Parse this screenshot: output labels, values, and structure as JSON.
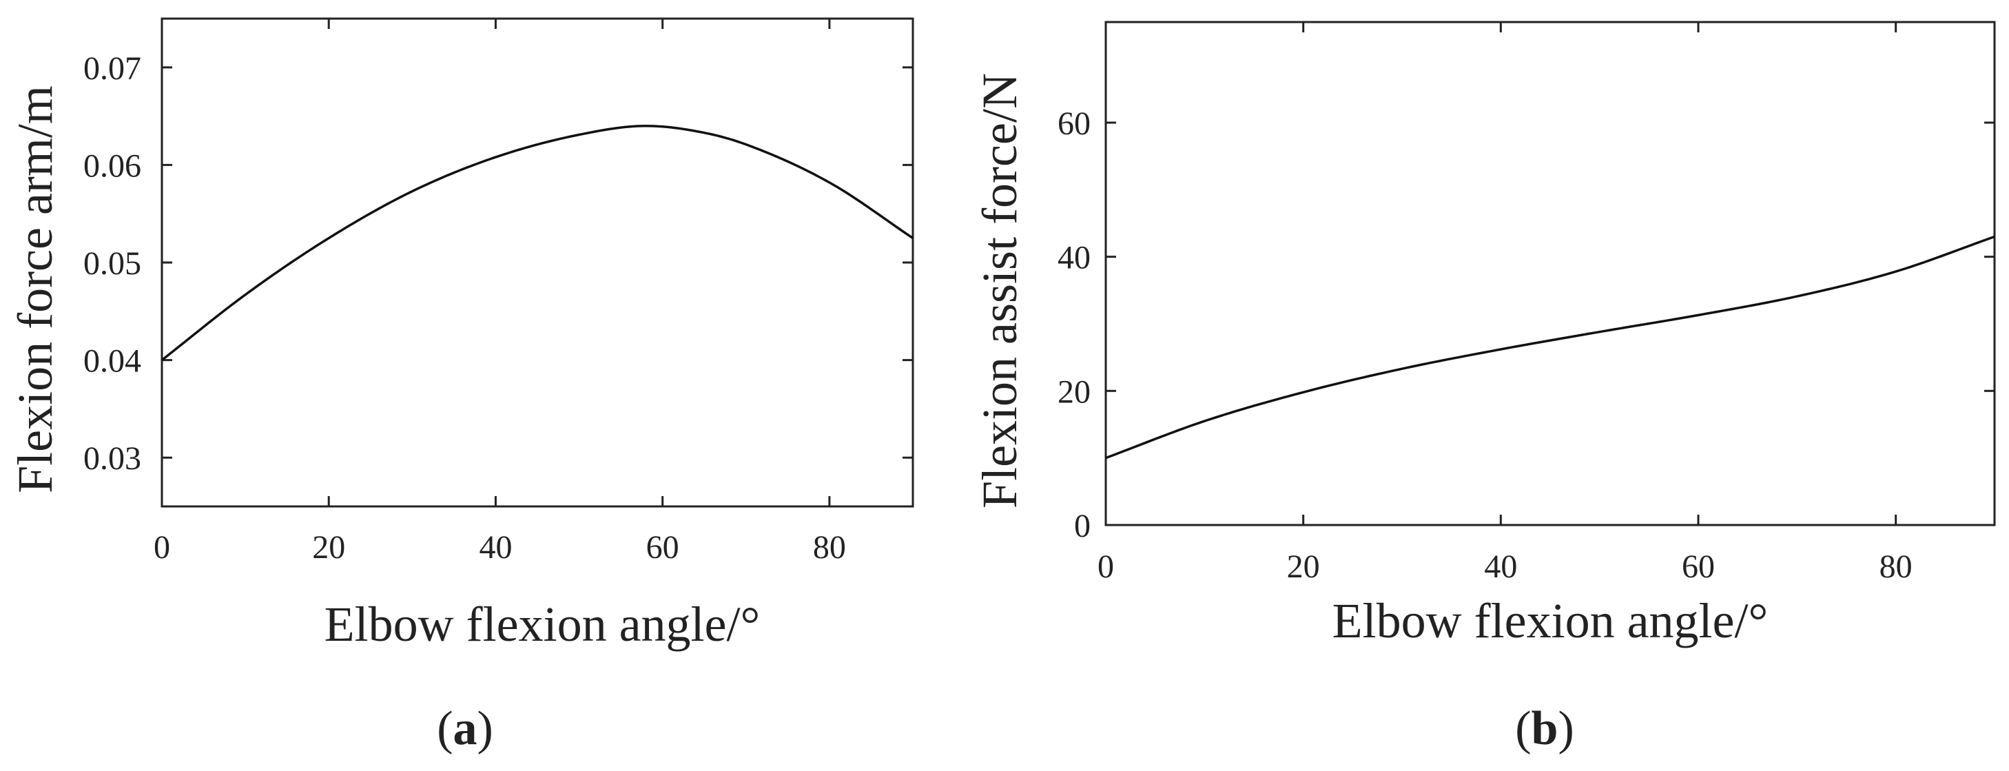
{
  "chart_data": [
    {
      "panel_label": "a",
      "type": "line",
      "title": "",
      "xlabel": "Elbow flexion angle/°",
      "ylabel": "Flexion force arm/m",
      "xlim": [
        0,
        90
      ],
      "ylim": [
        0.025,
        0.075
      ],
      "xticks": [
        0,
        20,
        40,
        60,
        80
      ],
      "xtick_labels": [
        "0",
        "20",
        "40",
        "60",
        "80"
      ],
      "yticks": [
        0.03,
        0.04,
        0.05,
        0.06,
        0.07
      ],
      "ytick_labels": [
        "0.03",
        "0.04",
        "0.05",
        "0.06",
        "0.07"
      ],
      "grid": false,
      "series": [
        {
          "x": [
            0,
            10,
            20,
            30,
            40,
            50,
            58,
            65,
            70,
            80,
            90
          ],
          "y": [
            0.04,
            0.0467,
            0.0525,
            0.0573,
            0.0608,
            0.0631,
            0.064,
            0.0633,
            0.0621,
            0.0582,
            0.0525
          ]
        }
      ]
    },
    {
      "panel_label": "b",
      "type": "line",
      "title": "",
      "xlabel": "Elbow flexion angle/°",
      "ylabel": "Flexion assist force/N",
      "xlim": [
        0,
        90
      ],
      "ylim": [
        0,
        75
      ],
      "xticks": [
        0,
        20,
        40,
        60,
        80
      ],
      "xtick_labels": [
        "0",
        "20",
        "40",
        "60",
        "80"
      ],
      "yticks": [
        0,
        20,
        40,
        60
      ],
      "ytick_labels": [
        "0",
        "20",
        "40",
        "60"
      ],
      "grid": false,
      "series": [
        {
          "x": [
            0,
            10,
            20,
            30,
            40,
            50,
            60,
            70,
            80,
            90
          ],
          "y": [
            10,
            15.5,
            19.8,
            23.3,
            26.2,
            28.8,
            31.3,
            34.1,
            37.8,
            43
          ]
        }
      ]
    }
  ]
}
